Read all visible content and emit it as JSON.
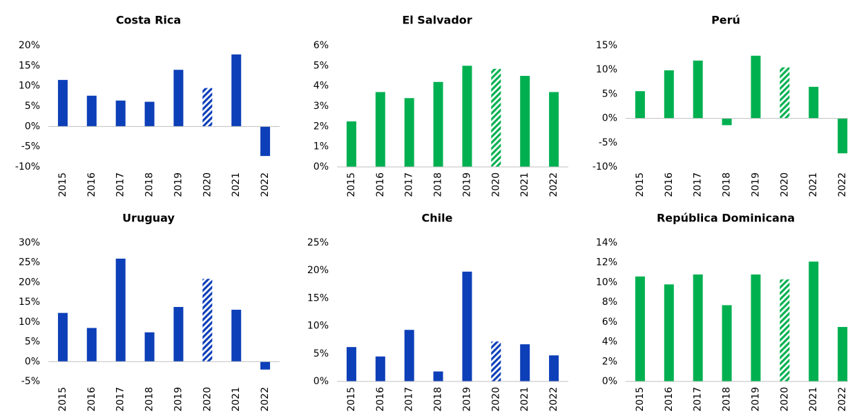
{
  "chart_data": [
    {
      "type": "bar",
      "title": "Costa Rica",
      "color": "#0d3fb8",
      "hatched_categories": [
        "2020"
      ],
      "categories": [
        "2015",
        "2016",
        "2017",
        "2018",
        "2019",
        "2020",
        "2021",
        "2022"
      ],
      "values": [
        11.5,
        7.6,
        6.4,
        6.1,
        14,
        9.5,
        17.8,
        -7.3
      ],
      "ylim": [
        -10,
        20
      ],
      "yticks": [
        {
          "value": -10,
          "label": "-10%"
        },
        {
          "value": -5,
          "label": "-5%"
        },
        {
          "value": 0,
          "label": "0%"
        },
        {
          "value": 5,
          "label": "5%"
        },
        {
          "value": 10,
          "label": "10%"
        },
        {
          "value": 15,
          "label": "15%"
        },
        {
          "value": 20,
          "label": "20%"
        }
      ]
    },
    {
      "type": "bar",
      "title": "El Salvador",
      "color": "#00b050",
      "hatched_categories": [
        "2020"
      ],
      "categories": [
        "2015",
        "2016",
        "2017",
        "2018",
        "2019",
        "2020",
        "2021",
        "2022"
      ],
      "values": [
        2.25,
        3.7,
        3.4,
        4.2,
        5.0,
        4.85,
        4.5,
        3.7
      ],
      "ylim": [
        0,
        6
      ],
      "yticks": [
        {
          "value": 0,
          "label": "0%"
        },
        {
          "value": 1,
          "label": "1%"
        },
        {
          "value": 2,
          "label": "2%"
        },
        {
          "value": 3,
          "label": "3%"
        },
        {
          "value": 4,
          "label": "4%"
        },
        {
          "value": 5,
          "label": "5%"
        },
        {
          "value": 6,
          "label": "6%"
        }
      ]
    },
    {
      "type": "bar",
      "title": "Perú",
      "color": "#00b050",
      "hatched_categories": [
        "2020"
      ],
      "categories": [
        "2015",
        "2016",
        "2017",
        "2018",
        "2019",
        "2020",
        "2021",
        "2022"
      ],
      "values": [
        5.6,
        9.9,
        11.9,
        -1.4,
        12.9,
        10.5,
        6.5,
        -7.2
      ],
      "ylim": [
        -10,
        15
      ],
      "yticks": [
        {
          "value": -10,
          "label": "-10%"
        },
        {
          "value": -5,
          "label": "-5%"
        },
        {
          "value": 0,
          "label": "0%"
        },
        {
          "value": 5,
          "label": "5%"
        },
        {
          "value": 10,
          "label": "10%"
        },
        {
          "value": 15,
          "label": "15%"
        }
      ]
    },
    {
      "type": "bar",
      "title": "Uruguay",
      "color": "#0d3fb8",
      "hatched_categories": [
        "2020"
      ],
      "categories": [
        "2015",
        "2016",
        "2017",
        "2018",
        "2019",
        "2020",
        "2021",
        "2022"
      ],
      "values": [
        12.3,
        8.5,
        26,
        7.4,
        13.8,
        20.9,
        13.1,
        -2.0
      ],
      "ylim": [
        -5,
        30
      ],
      "yticks": [
        {
          "value": -5,
          "label": "-5%"
        },
        {
          "value": 0,
          "label": "0%"
        },
        {
          "value": 5,
          "label": "5%"
        },
        {
          "value": 10,
          "label": "10%"
        },
        {
          "value": 15,
          "label": "15%"
        },
        {
          "value": 20,
          "label": "20%"
        },
        {
          "value": 25,
          "label": "25%"
        },
        {
          "value": 30,
          "label": "30%"
        }
      ]
    },
    {
      "type": "bar",
      "title": "Chile",
      "color": "#0d3fb8",
      "hatched_categories": [
        "2020"
      ],
      "categories": [
        "2015",
        "2016",
        "2017",
        "2018",
        "2019",
        "2020",
        "2021",
        "2022"
      ],
      "values": [
        6.2,
        4.5,
        9.3,
        1.8,
        19.8,
        7.2,
        6.7,
        4.7
      ],
      "ylim": [
        0,
        25
      ],
      "yticks": [
        {
          "value": 0,
          "label": "0%"
        },
        {
          "value": 5,
          "label": "5%"
        },
        {
          "value": 10,
          "label": "10%"
        },
        {
          "value": 15,
          "label": "15%"
        },
        {
          "value": 20,
          "label": "20%"
        },
        {
          "value": 25,
          "label": "25%"
        }
      ]
    },
    {
      "type": "bar",
      "title": "República Dominicana",
      "color": "#00b050",
      "hatched_categories": [
        "2020"
      ],
      "categories": [
        "2015",
        "2016",
        "2017",
        "2018",
        "2019",
        "2020",
        "2021",
        "2022"
      ],
      "values": [
        10.6,
        9.8,
        10.8,
        7.7,
        10.8,
        10.3,
        12.1,
        5.5
      ],
      "ylim": [
        0,
        14
      ],
      "yticks": [
        {
          "value": 0,
          "label": "0%"
        },
        {
          "value": 2,
          "label": "2%"
        },
        {
          "value": 4,
          "label": "4%"
        },
        {
          "value": 6,
          "label": "6%"
        },
        {
          "value": 8,
          "label": "8%"
        },
        {
          "value": 10,
          "label": "10%"
        },
        {
          "value": 12,
          "label": "12%"
        },
        {
          "value": 14,
          "label": "14%"
        }
      ]
    }
  ]
}
